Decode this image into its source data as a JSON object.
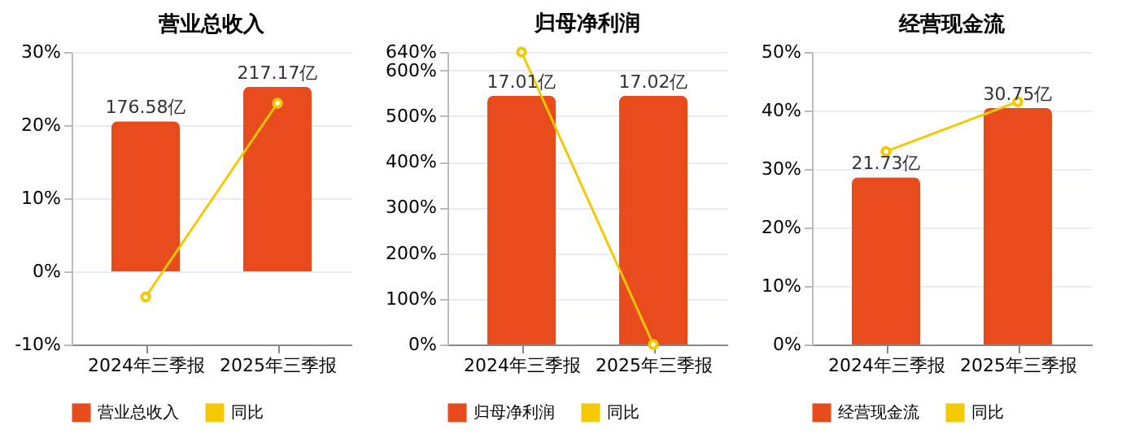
{
  "chart_data": [
    {
      "type": "bar",
      "title": "营业总收入",
      "categories": [
        "2024年三季报",
        "2025年三季报"
      ],
      "series": [
        {
          "name": "营业总收入",
          "color": "#e84b1c",
          "axis": "y2",
          "values": [
            176.58,
            217.17
          ],
          "value_labels": [
            "176.58亿",
            "217.17亿"
          ]
        },
        {
          "name": "同比",
          "type": "line",
          "color": "#f5c800",
          "marker": "circle",
          "values": [
            -3.5,
            23.0
          ]
        }
      ],
      "ylim": [
        -10,
        30
      ],
      "yticks": [
        {
          "value": -10,
          "label": "-10%"
        },
        {
          "value": 0,
          "label": "0%"
        },
        {
          "value": 10,
          "label": "10%"
        },
        {
          "value": 20,
          "label": "20%"
        },
        {
          "value": 30,
          "label": "30%"
        }
      ],
      "y2lim": [
        -86,
        258
      ],
      "grid": "y",
      "legend": "bottom"
    },
    {
      "type": "bar",
      "title": "归母净利润",
      "categories": [
        "2024年三季报",
        "2025年三季报"
      ],
      "series": [
        {
          "name": "归母净利润",
          "color": "#e84b1c",
          "axis": "y2",
          "values": [
            17.01,
            17.02
          ],
          "value_labels": [
            "17.01亿",
            "17.02亿"
          ]
        },
        {
          "name": "同比",
          "type": "line",
          "color": "#f5c800",
          "marker": "circle",
          "values": [
            640,
            0
          ]
        }
      ],
      "ylim": [
        0,
        640
      ],
      "yticks": [
        {
          "value": 0,
          "label": "0%"
        },
        {
          "value": 100,
          "label": "100%"
        },
        {
          "value": 200,
          "label": "200%"
        },
        {
          "value": 300,
          "label": "300%"
        },
        {
          "value": 400,
          "label": "400%"
        },
        {
          "value": 500,
          "label": "500%"
        },
        {
          "value": 600,
          "label": "600%"
        },
        {
          "value": 640,
          "label": "640%"
        }
      ],
      "y2lim": [
        0,
        20
      ],
      "grid": "y",
      "legend": "bottom"
    },
    {
      "type": "bar",
      "title": "经营现金流",
      "categories": [
        "2024年三季报",
        "2025年三季报"
      ],
      "series": [
        {
          "name": "经营现金流",
          "color": "#e84b1c",
          "axis": "y2",
          "values": [
            21.73,
            30.75
          ],
          "value_labels": [
            "21.73亿",
            "30.75亿"
          ]
        },
        {
          "name": "同比",
          "type": "line",
          "color": "#f5c800",
          "marker": "circle",
          "values": [
            33.0,
            41.5
          ]
        }
      ],
      "ylim": [
        0,
        50
      ],
      "yticks": [
        {
          "value": 0,
          "label": "0%"
        },
        {
          "value": 10,
          "label": "10%"
        },
        {
          "value": 20,
          "label": "20%"
        },
        {
          "value": 30,
          "label": "30%"
        },
        {
          "value": 40,
          "label": "40%"
        },
        {
          "value": 50,
          "label": "50%"
        }
      ],
      "y2lim": [
        0,
        38
      ],
      "grid": "y",
      "legend": "bottom"
    }
  ]
}
